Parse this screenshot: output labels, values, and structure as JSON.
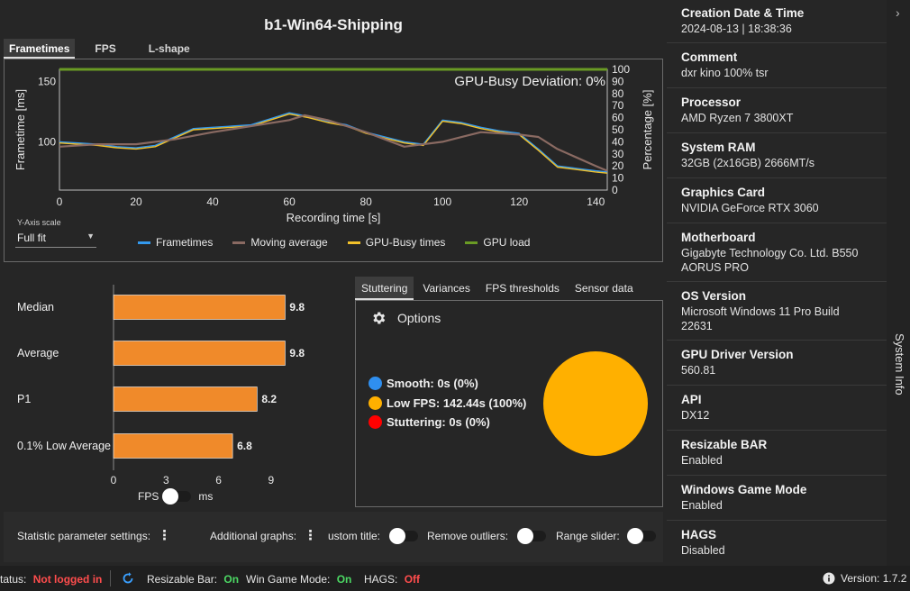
{
  "window": {
    "title": "b1-Win64-Shipping"
  },
  "frametime_tabs": [
    "Frametimes",
    "FPS",
    "L-shape"
  ],
  "frametime_panel": {
    "overlay_text": "GPU-Busy Deviation: 0%",
    "y_axis_scale_label": "Y-Axis scale",
    "y_axis_scale_value": "Full fit",
    "legend": [
      {
        "label": "Frametimes",
        "color": "#3399ee"
      },
      {
        "label": "Moving average",
        "color": "#8a6a62"
      },
      {
        "label": "GPU-Busy times",
        "color": "#f2c12a"
      },
      {
        "label": "GPU load",
        "color": "#6a9b24"
      }
    ]
  },
  "chart_data": [
    {
      "type": "line",
      "title": "",
      "xlabel": "Recording time [s]",
      "ylabel": "Frametime [ms]",
      "ylabel_right": "Percentage [%]",
      "xlim": [
        0,
        143
      ],
      "ylim": [
        60,
        160
      ],
      "ylim_right": [
        0,
        100
      ],
      "x_ticks": [
        0,
        20,
        40,
        60,
        80,
        100,
        120,
        140
      ],
      "y_ticks": [
        100,
        150
      ],
      "y_ticks_right": [
        0,
        10,
        20,
        30,
        40,
        50,
        60,
        70,
        80,
        90,
        100
      ],
      "series": [
        {
          "name": "Frametimes",
          "x": [
            0,
            5,
            10,
            15,
            20,
            25,
            30,
            35,
            40,
            45,
            50,
            55,
            60,
            65,
            70,
            75,
            80,
            85,
            90,
            95,
            100,
            105,
            110,
            115,
            120,
            125,
            130,
            135,
            140,
            143
          ],
          "values": [
            100,
            99,
            98,
            96,
            95,
            97,
            104,
            111,
            112,
            113,
            114,
            119,
            124,
            121,
            117,
            114,
            108,
            104,
            100,
            98,
            118,
            116,
            112,
            109,
            107,
            94,
            80,
            78,
            76,
            75
          ]
        },
        {
          "name": "Moving average",
          "x": [
            0,
            10,
            20,
            30,
            40,
            50,
            60,
            64,
            70,
            80,
            90,
            100,
            110,
            120,
            125,
            130,
            140,
            143
          ],
          "values": [
            96,
            98,
            98,
            102,
            108,
            113,
            118,
            122,
            118,
            108,
            96,
            100,
            108,
            106,
            104,
            94,
            80,
            76
          ]
        },
        {
          "name": "GPU-Busy times",
          "x": [
            0,
            5,
            10,
            15,
            20,
            25,
            30,
            35,
            40,
            45,
            50,
            55,
            60,
            65,
            70,
            75,
            80,
            85,
            90,
            95,
            100,
            105,
            110,
            115,
            120,
            125,
            130,
            135,
            140,
            143
          ],
          "values": [
            99,
            98,
            97,
            95,
            94,
            96,
            103,
            110,
            111,
            112,
            113,
            118,
            123,
            120,
            116,
            113,
            107,
            103,
            99,
            97,
            117,
            115,
            111,
            108,
            106,
            93,
            79,
            77,
            75,
            74
          ]
        },
        {
          "name": "GPU load",
          "axis": "right",
          "x": [
            0,
            143
          ],
          "values": [
            100,
            100
          ]
        }
      ]
    },
    {
      "type": "bar",
      "orientation": "horizontal",
      "categories": [
        "Median",
        "Average",
        "P1",
        "0.1% Low Average"
      ],
      "values": [
        9.8,
        9.8,
        8.2,
        6.8
      ],
      "value_labels": [
        "9.8",
        "9.8",
        "8.2",
        "6.8"
      ],
      "color": "#f08a2a",
      "xlim": [
        0,
        10.5
      ],
      "x_ticks": [
        0,
        3,
        6,
        9
      ]
    },
    {
      "type": "pie",
      "categories": [
        "Smooth",
        "Low FPS",
        "Stuttering"
      ],
      "values": [
        0,
        100,
        0
      ],
      "colors": [
        "#2f8ff0",
        "#ffb000",
        "#ff0000"
      ]
    }
  ],
  "bar_unit_toggle": {
    "left_label": "FPS",
    "right_label": "ms"
  },
  "stats_settings": {
    "statistic_parameter_label": "Statistic parameter settings:",
    "additional_graphs_label": "Additional graphs:",
    "custom_title_label": "ustom title:",
    "remove_outliers_label": "Remove outliers:",
    "range_slider_label": "Range slider:"
  },
  "stutter_tabs": [
    "Stuttering",
    "Variances",
    "FPS thresholds",
    "Sensor data"
  ],
  "stuttering": {
    "options_label": "Options",
    "rows": [
      {
        "label": "Smooth:  0s (0%)",
        "color": "#2f8ff0"
      },
      {
        "label": "Low FPS:  142.44s (100%)",
        "color": "#ffb000"
      },
      {
        "label": "Stuttering:  0s (0%)",
        "color": "#ff0000"
      }
    ]
  },
  "system_info": {
    "sidebar_title": "System Info",
    "items": [
      {
        "label": "Creation Date & Time",
        "value": "2024-08-13  |  18:38:36"
      },
      {
        "label": "Comment",
        "value": "dxr kino 100% tsr"
      },
      {
        "label": "Processor",
        "value": "AMD Ryzen 7 3800XT"
      },
      {
        "label": "System RAM",
        "value": "32GB (2x16GB) 2666MT/s"
      },
      {
        "label": "Graphics Card",
        "value": "NVIDIA GeForce RTX 3060"
      },
      {
        "label": "Motherboard",
        "value": "Gigabyte Technology Co. Ltd. B550 AORUS PRO"
      },
      {
        "label": "OS Version",
        "value": "Microsoft Windows 11 Pro Build 22631"
      },
      {
        "label": "GPU Driver Version",
        "value": "560.81"
      },
      {
        "label": "API",
        "value": "DX12"
      },
      {
        "label": "Resizable BAR",
        "value": "Enabled"
      },
      {
        "label": "Windows Game Mode",
        "value": "Enabled"
      },
      {
        "label": "HAGS",
        "value": "Disabled"
      }
    ]
  },
  "status_bar": {
    "status_label": "tatus:",
    "status_value": "Not logged in",
    "resizable_bar_label": "Resizable Bar:",
    "resizable_bar_value": "On",
    "game_mode_label": "Win Game Mode:",
    "game_mode_value": "On",
    "hags_label": "HAGS:",
    "hags_value": "Off",
    "version_label": "Version: 1.7.2"
  },
  "colors": {
    "accent_on": "#4cd964",
    "accent_off": "#ff4d4d",
    "bar_orange": "#f08a2a"
  }
}
